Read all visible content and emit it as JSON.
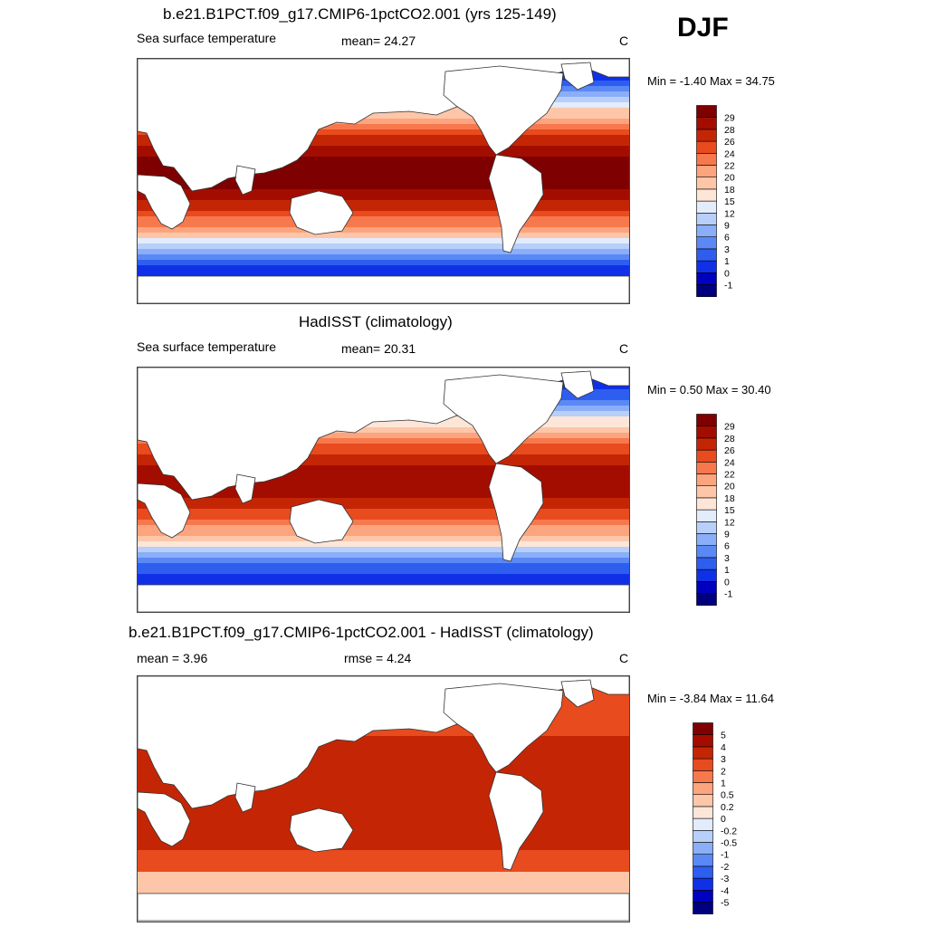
{
  "season": "DJF",
  "panels": [
    {
      "title": "b.e21.B1PCT.f09_g17.CMIP6-1pctCO2.001 (yrs 125-149)",
      "left_label": "Sea surface temperature",
      "center_label": "mean=  24.27",
      "right_label": "C",
      "minmax": "Min =  -1.40 Max =  34.75"
    },
    {
      "title": "HadISST (climatology)",
      "left_label": "Sea surface temperature",
      "center_label": "mean=  20.31",
      "right_label": "C",
      "minmax": "Min =   0.50 Max =  30.40"
    },
    {
      "title": "b.e21.B1PCT.f09_g17.CMIP6-1pctCO2.001 - HadISST (climatology)",
      "left_label": "mean =   3.96",
      "center_label": "rmse =   4.24",
      "right_label": "C",
      "minmax": "Min =  -3.84 Max =  11.64"
    }
  ],
  "chart_data": [
    {
      "type": "heatmap",
      "title": "b.e21.B1PCT.f09_g17.CMIP6-1pctCO2.001 (yrs 125-149)",
      "variable": "Sea surface temperature",
      "units": "C",
      "mean": 24.27,
      "min": -1.4,
      "max": 34.75,
      "colorbar_levels": [
        "-1",
        "0",
        "1",
        "3",
        "6",
        "9",
        "12",
        "15",
        "18",
        "20",
        "22",
        "24",
        "26",
        "28",
        "29"
      ],
      "colorbar_colors": [
        "#00007f",
        "#0000c0",
        "#1030e8",
        "#2e5ef0",
        "#5a88f5",
        "#8aaef8",
        "#b8cff9",
        "#e2ecfb",
        "#fde6d7",
        "#fdc6a8",
        "#fca47e",
        "#f7784d",
        "#e84b1e",
        "#c42605",
        "#a30d00",
        "#7f0000"
      ]
    },
    {
      "type": "heatmap",
      "title": "HadISST (climatology)",
      "variable": "Sea surface temperature",
      "units": "C",
      "mean": 20.31,
      "min": 0.5,
      "max": 30.4,
      "colorbar_levels": [
        "-1",
        "0",
        "1",
        "3",
        "6",
        "9",
        "12",
        "15",
        "18",
        "20",
        "22",
        "24",
        "26",
        "28",
        "29"
      ],
      "colorbar_colors": [
        "#00007f",
        "#0000c0",
        "#1030e8",
        "#2e5ef0",
        "#5a88f5",
        "#8aaef8",
        "#b8cff9",
        "#e2ecfb",
        "#fde6d7",
        "#fdc6a8",
        "#fca47e",
        "#f7784d",
        "#e84b1e",
        "#c42605",
        "#a30d00",
        "#7f0000"
      ]
    },
    {
      "type": "heatmap",
      "title": "b.e21.B1PCT.f09_g17.CMIP6-1pctCO2.001 - HadISST (climatology)",
      "units": "C",
      "mean": 3.96,
      "rmse": 4.24,
      "min": -3.84,
      "max": 11.64,
      "colorbar_levels": [
        "-5",
        "-4",
        "-3",
        "-2",
        "-1",
        "-0.5",
        "-0.2",
        "0",
        "0.2",
        "0.5",
        "1",
        "2",
        "3",
        "4",
        "5"
      ],
      "colorbar_colors": [
        "#00007f",
        "#0000c0",
        "#1030e8",
        "#2e5ef0",
        "#5a88f5",
        "#8aaef8",
        "#b8cff9",
        "#e2ecfb",
        "#fde6d7",
        "#fdc6a8",
        "#fca47e",
        "#f7784d",
        "#e84b1e",
        "#c42605",
        "#a30d00",
        "#7f0000"
      ]
    }
  ]
}
